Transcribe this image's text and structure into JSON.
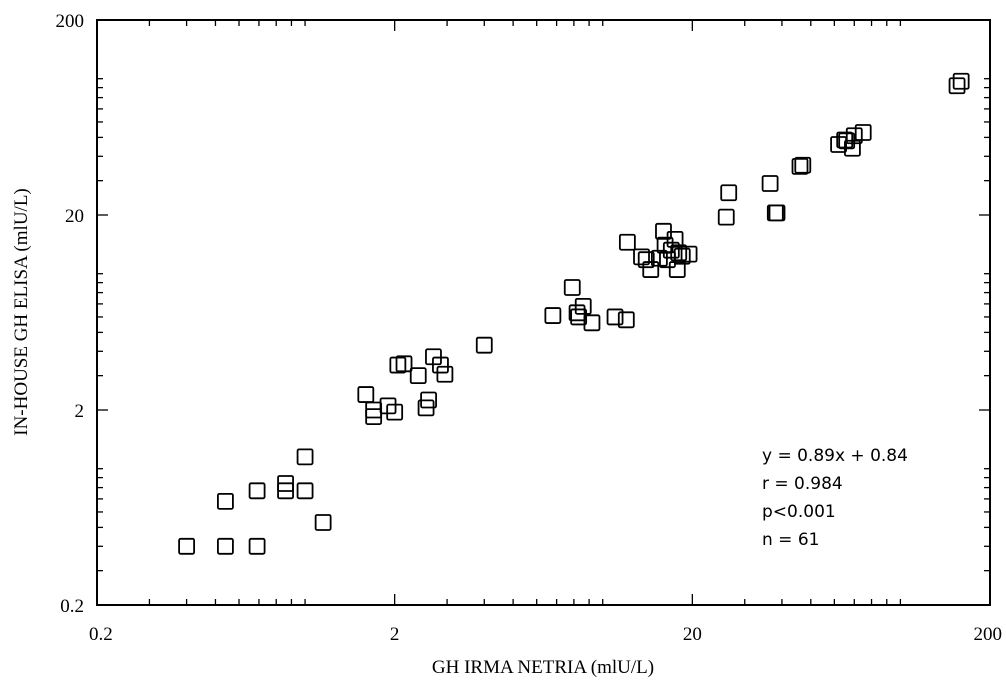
{
  "chart_data": {
    "type": "scatter",
    "title": "",
    "xlabel": "GH IRMA NETRIA (mlU/L)",
    "ylabel": "IN-HOUSE GH ELISA (mlU/L)",
    "xscale": "log",
    "yscale": "log",
    "xlim": [
      0.2,
      200
    ],
    "ylim": [
      0.2,
      200
    ],
    "xticks": [
      0.2,
      2,
      20,
      200
    ],
    "yticks": [
      0.2,
      2,
      20,
      200
    ],
    "xtick_labels": [
      "0.2",
      "2",
      "20",
      "200"
    ],
    "ytick_labels": [
      "0.2",
      "2",
      "20",
      "200"
    ],
    "grid": false,
    "legend": "none",
    "marker": "open-square",
    "annotations": [
      "y = 0.89x + 0.84",
      "r = 0.984",
      "p<0.001",
      "n = 61"
    ],
    "points": [
      {
        "x": 0.4,
        "y": 0.4
      },
      {
        "x": 0.54,
        "y": 0.4
      },
      {
        "x": 0.69,
        "y": 0.4
      },
      {
        "x": 0.54,
        "y": 0.68
      },
      {
        "x": 0.69,
        "y": 0.77
      },
      {
        "x": 0.86,
        "y": 0.77
      },
      {
        "x": 0.86,
        "y": 0.84
      },
      {
        "x": 1.0,
        "y": 0.77
      },
      {
        "x": 1.0,
        "y": 1.15
      },
      {
        "x": 1.15,
        "y": 0.53
      },
      {
        "x": 1.6,
        "y": 2.4
      },
      {
        "x": 1.7,
        "y": 2.0
      },
      {
        "x": 1.7,
        "y": 1.85
      },
      {
        "x": 1.9,
        "y": 2.1
      },
      {
        "x": 2.0,
        "y": 1.95
      },
      {
        "x": 2.05,
        "y": 3.4
      },
      {
        "x": 2.15,
        "y": 3.45
      },
      {
        "x": 2.4,
        "y": 3.0
      },
      {
        "x": 2.55,
        "y": 2.05
      },
      {
        "x": 2.6,
        "y": 2.25
      },
      {
        "x": 2.7,
        "y": 3.75
      },
      {
        "x": 2.85,
        "y": 3.4
      },
      {
        "x": 2.95,
        "y": 3.05
      },
      {
        "x": 4.0,
        "y": 4.3
      },
      {
        "x": 6.8,
        "y": 6.1
      },
      {
        "x": 7.9,
        "y": 8.5
      },
      {
        "x": 8.2,
        "y": 6.3
      },
      {
        "x": 8.3,
        "y": 6.0
      },
      {
        "x": 8.6,
        "y": 6.8
      },
      {
        "x": 9.2,
        "y": 5.6
      },
      {
        "x": 11.0,
        "y": 6.0
      },
      {
        "x": 12.0,
        "y": 5.8
      },
      {
        "x": 12.1,
        "y": 14.5
      },
      {
        "x": 13.5,
        "y": 12.2
      },
      {
        "x": 14.0,
        "y": 11.8
      },
      {
        "x": 14.5,
        "y": 10.5
      },
      {
        "x": 15.5,
        "y": 12.0
      },
      {
        "x": 16.0,
        "y": 16.5
      },
      {
        "x": 16.2,
        "y": 14.0
      },
      {
        "x": 16.5,
        "y": 11.8
      },
      {
        "x": 17.0,
        "y": 13.2
      },
      {
        "x": 17.5,
        "y": 15.0
      },
      {
        "x": 17.8,
        "y": 10.5
      },
      {
        "x": 18.0,
        "y": 12.8
      },
      {
        "x": 18.5,
        "y": 12.3
      },
      {
        "x": 19.5,
        "y": 12.6
      },
      {
        "x": 26.0,
        "y": 19.5
      },
      {
        "x": 26.5,
        "y": 26.0
      },
      {
        "x": 36.5,
        "y": 29.0
      },
      {
        "x": 38.0,
        "y": 20.5
      },
      {
        "x": 38.5,
        "y": 20.5
      },
      {
        "x": 46.0,
        "y": 35.5
      },
      {
        "x": 47.0,
        "y": 36.0
      },
      {
        "x": 62.0,
        "y": 46.0
      },
      {
        "x": 65.0,
        "y": 48.5
      },
      {
        "x": 66.0,
        "y": 48.0
      },
      {
        "x": 69.0,
        "y": 44.0
      },
      {
        "x": 70.0,
        "y": 51.0
      },
      {
        "x": 75.0,
        "y": 53.0
      },
      {
        "x": 155.0,
        "y": 92.0
      },
      {
        "x": 160.0,
        "y": 97.0
      }
    ]
  }
}
